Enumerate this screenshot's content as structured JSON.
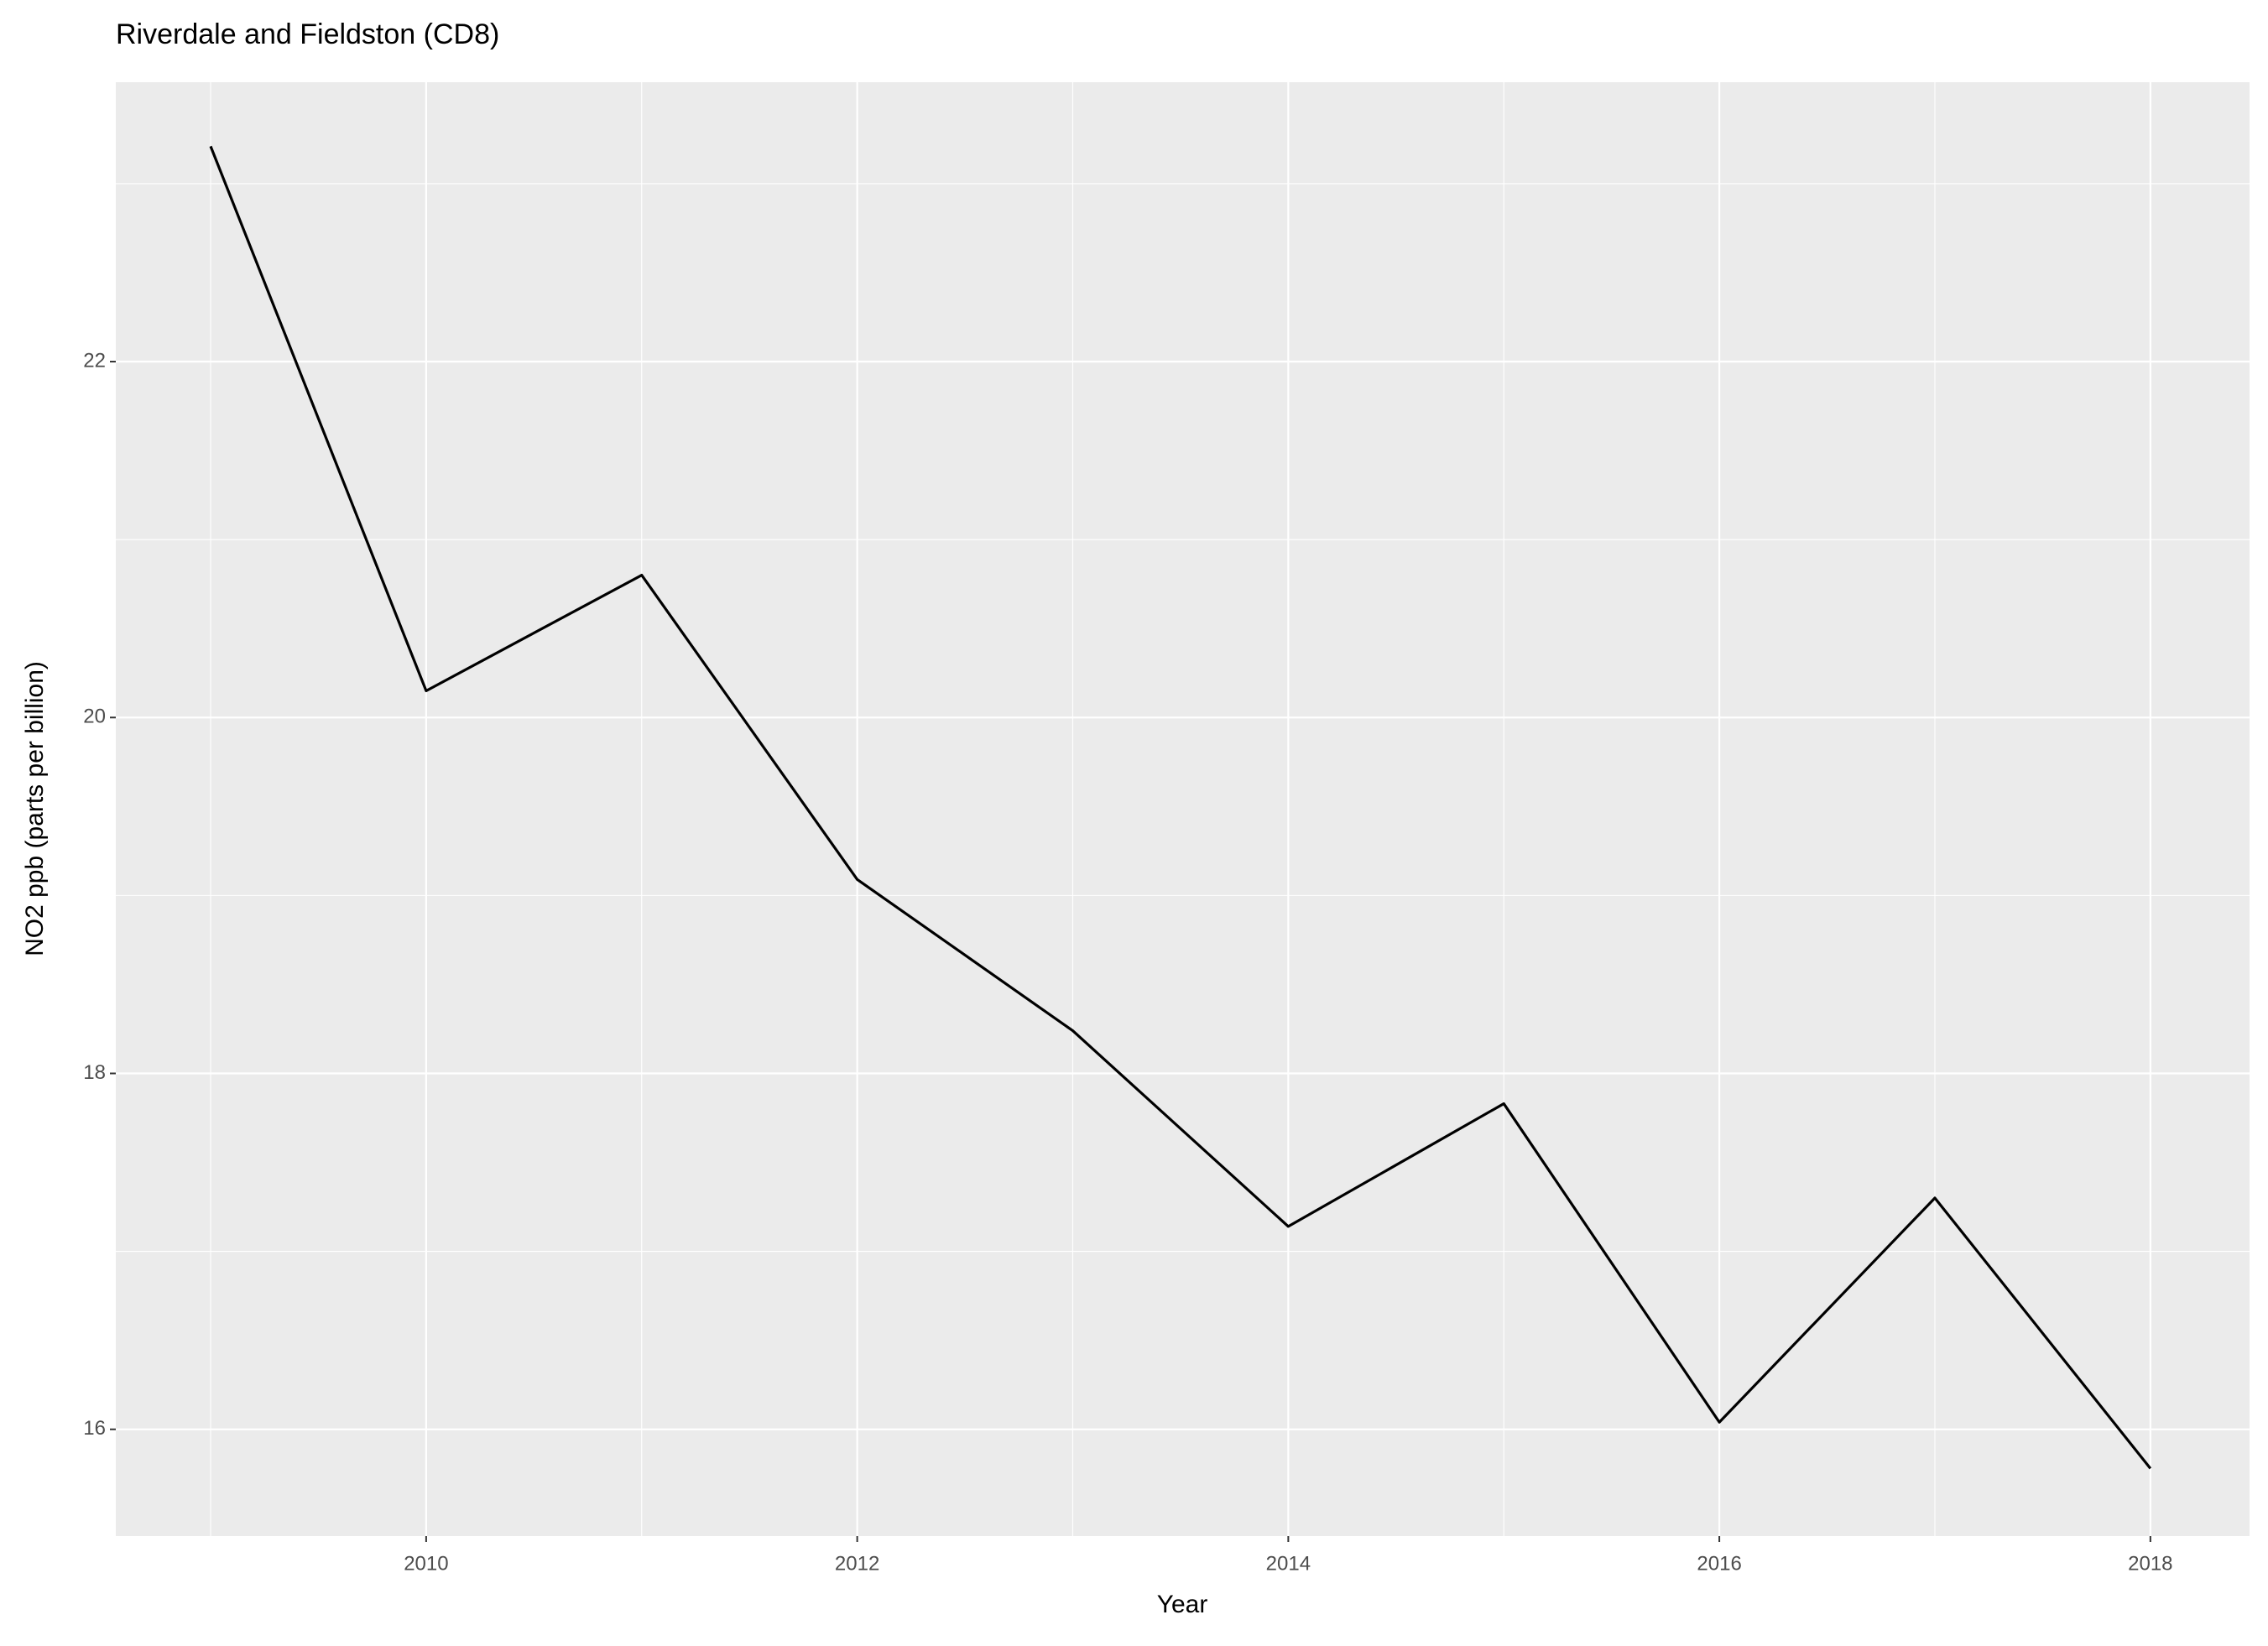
{
  "chart_data": {
    "type": "line",
    "title": "Riverdale and Fieldston (CD8)",
    "x_label": "Year",
    "y_label": "NO2 ppb (parts per billion)",
    "x": [
      2009,
      2010,
      2011,
      2012,
      2013,
      2014,
      2015,
      2016,
      2017,
      2018
    ],
    "series": [
      {
        "name": "NO2",
        "color": "#000000",
        "values": [
          23.21,
          20.15,
          20.8,
          19.09,
          18.24,
          17.14,
          17.83,
          16.04,
          17.3,
          15.78
        ]
      }
    ],
    "xlim": [
      2008.56,
      2018.46
    ],
    "xticks": [
      2010,
      2012,
      2014,
      2016,
      2018
    ],
    "ylim": [
      15.4,
      23.57
    ],
    "yticks": [
      16,
      18,
      20,
      22
    ],
    "grid": true,
    "minor_grid": true,
    "panel_color": "#EBEBEB"
  }
}
